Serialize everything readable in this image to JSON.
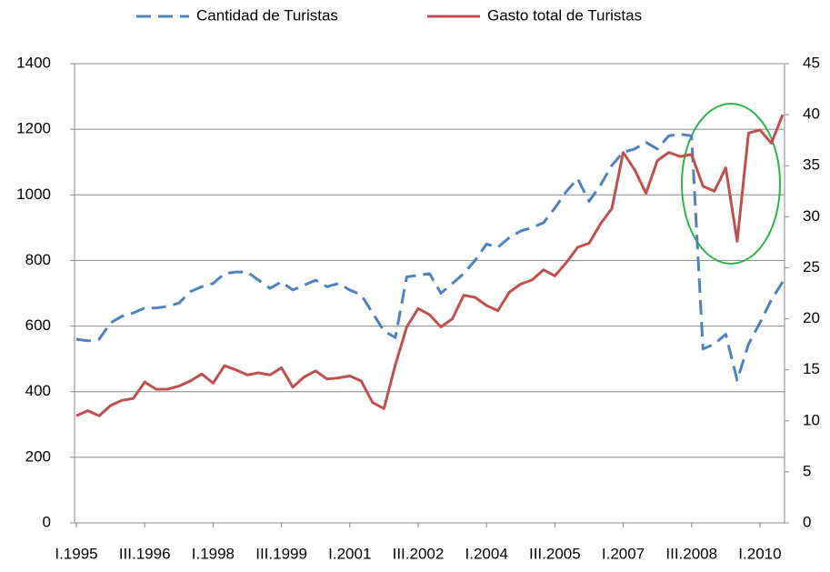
{
  "chart_data": {
    "type": "line",
    "categories": [
      "I.1995",
      null,
      null,
      null,
      null,
      null,
      "III.1996",
      null,
      null,
      null,
      null,
      null,
      "I.1998",
      null,
      null,
      null,
      null,
      null,
      "III.1999",
      null,
      null,
      null,
      null,
      null,
      "I.2001",
      null,
      null,
      null,
      null,
      null,
      "III.2002",
      null,
      null,
      null,
      null,
      null,
      "I.2004",
      null,
      null,
      null,
      null,
      null,
      "III.2005",
      null,
      null,
      null,
      null,
      null,
      "I.2007",
      null,
      null,
      null,
      null,
      null,
      "III.2008",
      null,
      null,
      null,
      null,
      null,
      "I.2010",
      null,
      null
    ],
    "series": [
      {
        "name": "Cantidad de Turistas",
        "color": "#4f81bd",
        "dashed": true,
        "axis": "y",
        "values": [
          560,
          555,
          560,
          610,
          630,
          640,
          655,
          655,
          660,
          670,
          705,
          720,
          730,
          760,
          765,
          765,
          740,
          715,
          735,
          710,
          725,
          740,
          720,
          730,
          710,
          695,
          640,
          585,
          565,
          750,
          755,
          760,
          700,
          730,
          760,
          800,
          850,
          840,
          870,
          890,
          900,
          915,
          960,
          1010,
          1050,
          980,
          1030,
          1090,
          1130,
          1140,
          1160,
          1140,
          1180,
          1185,
          1180,
          530,
          545,
          575,
          435,
          545,
          610,
          680,
          735
        ]
      },
      {
        "name": "Gasto total de Turistas",
        "color": "#c0504d",
        "dashed": false,
        "axis": "y2",
        "values": [
          10.5,
          11,
          10.5,
          11.5,
          12,
          12.2,
          13.8,
          13.1,
          13.1,
          13.4,
          13.9,
          14.6,
          13.7,
          15.4,
          15,
          14.5,
          14.7,
          14.5,
          15.2,
          13.3,
          14.3,
          14.9,
          14.1,
          14.2,
          14.4,
          13.9,
          11.8,
          11.2,
          15.5,
          19.2,
          21,
          20.4,
          19.2,
          20,
          22.3,
          22.1,
          21.3,
          20.8,
          22.6,
          23.4,
          23.8,
          24.8,
          24.2,
          25.5,
          27,
          27.4,
          29.3,
          30.8,
          36.3,
          34.6,
          32.3,
          35.5,
          36.3,
          35.9,
          36.1,
          33,
          32.5,
          34.8,
          27.6,
          38.2,
          38.5,
          37.2,
          40
        ]
      }
    ],
    "ylim": [
      0,
      1400
    ],
    "yticks": [
      0,
      200,
      400,
      600,
      800,
      1000,
      1200,
      1400
    ],
    "y2lim": [
      0,
      45
    ],
    "y2ticks": [
      0,
      5,
      10,
      15,
      20,
      25,
      30,
      35,
      40,
      45
    ],
    "grid": true,
    "legend": "top"
  }
}
